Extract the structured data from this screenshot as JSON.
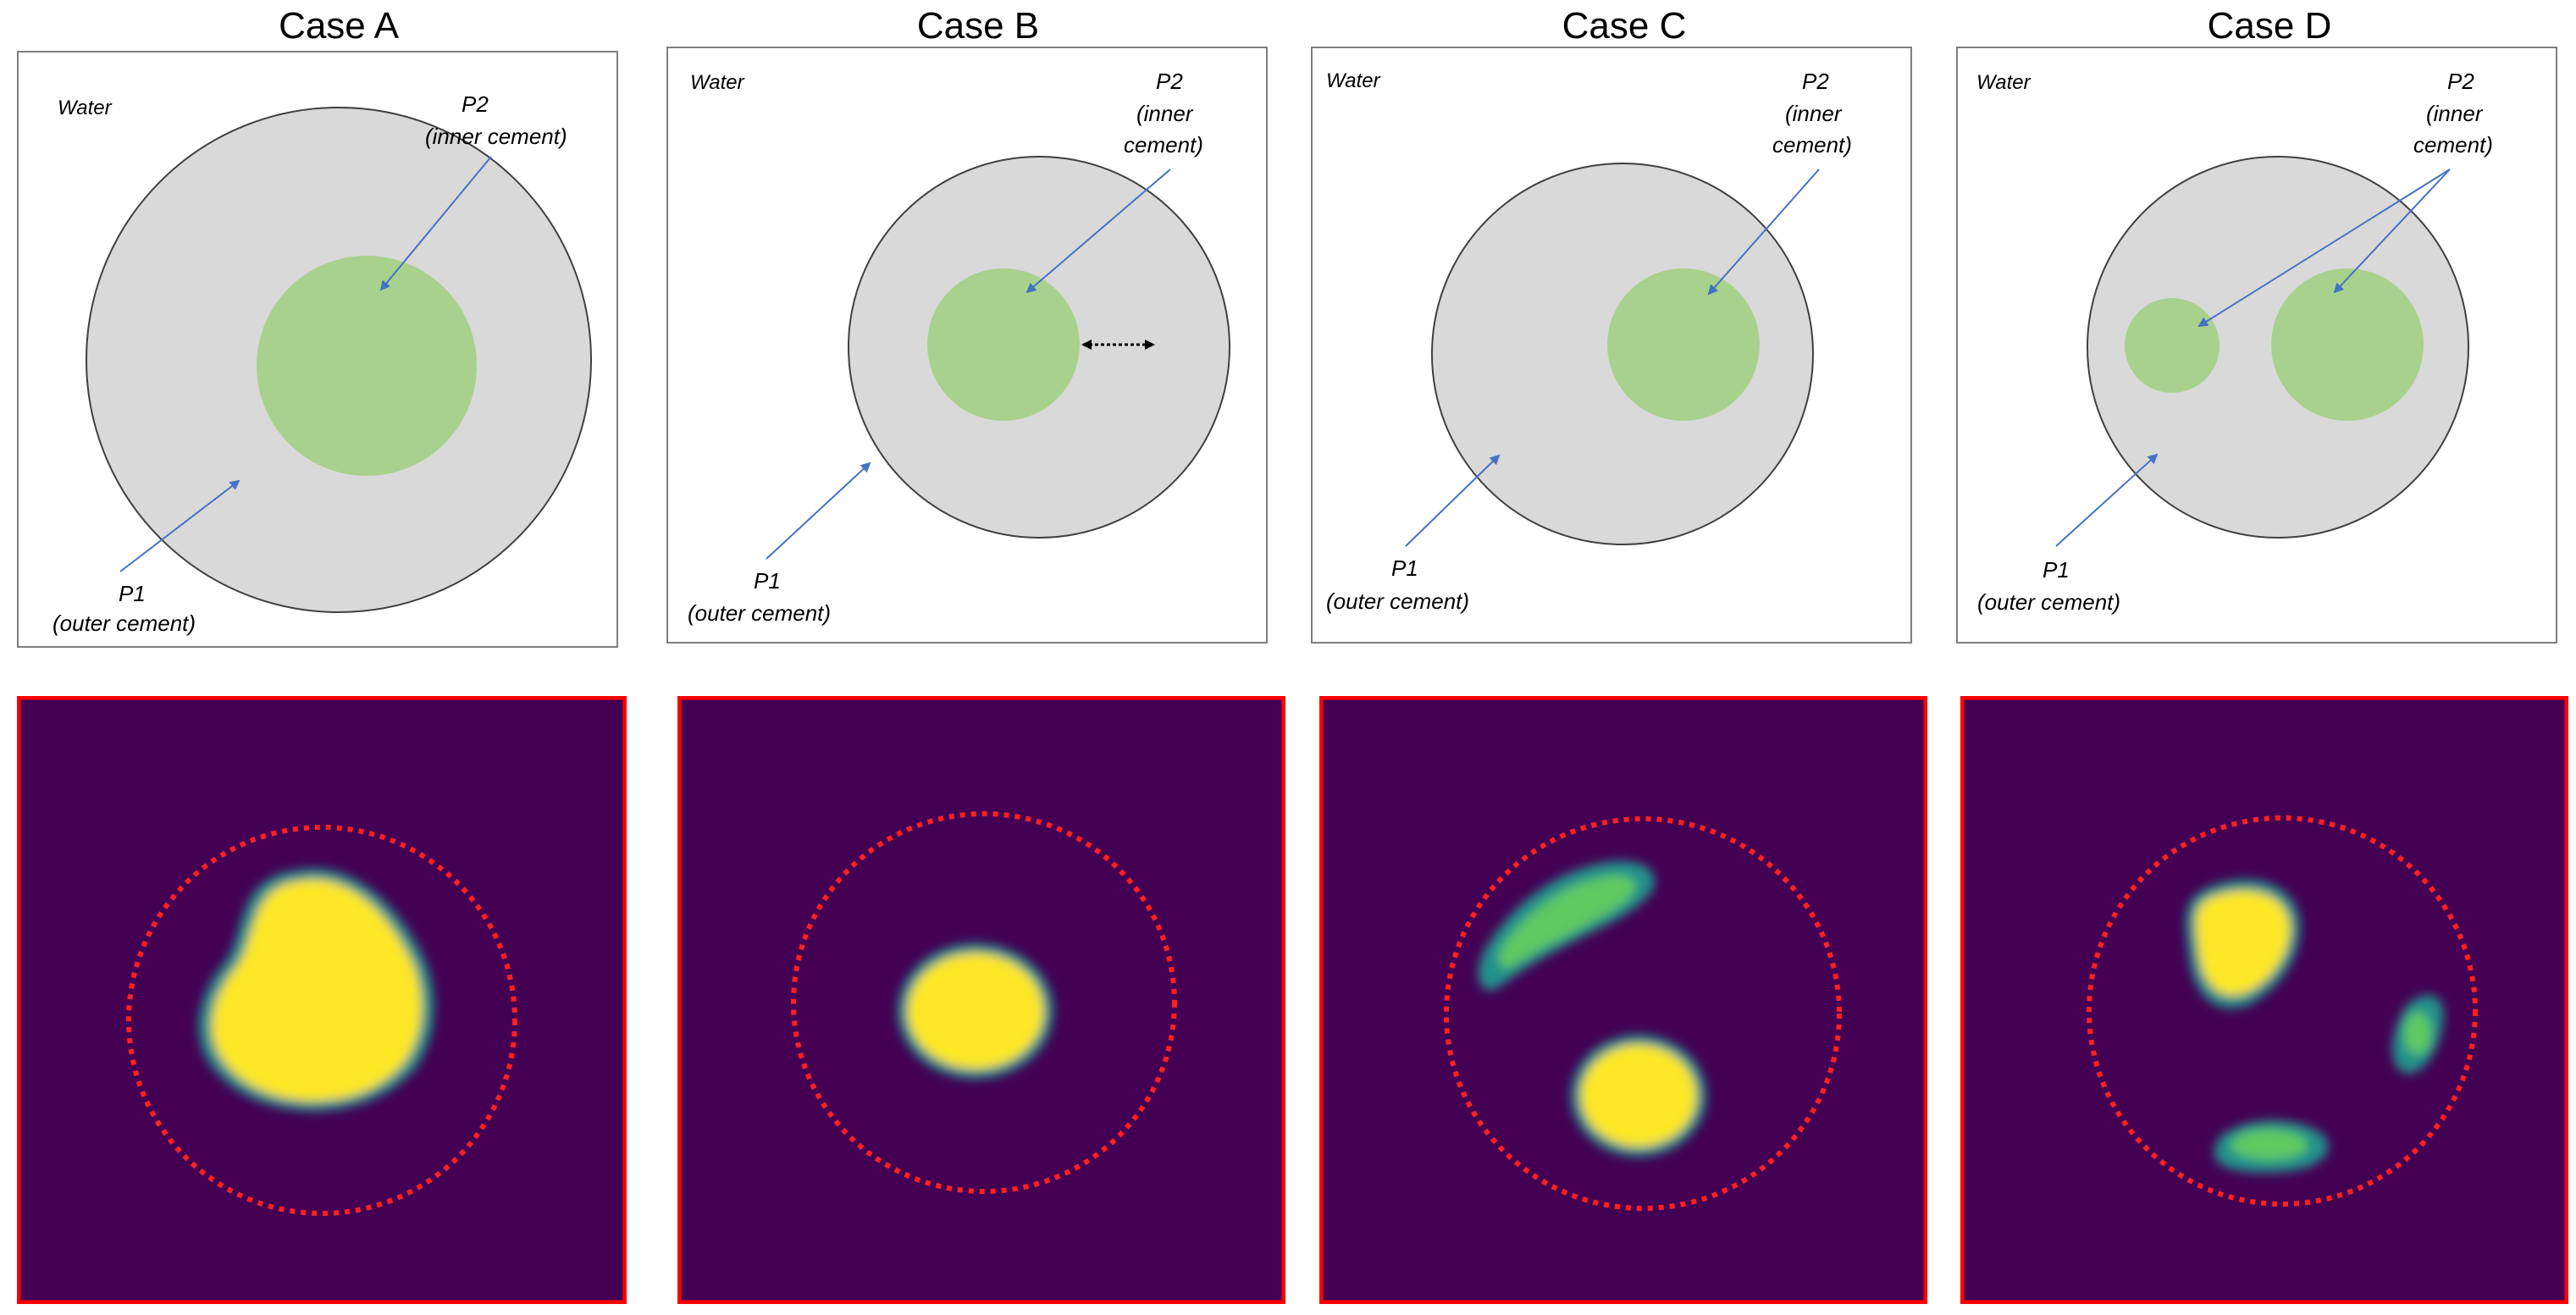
{
  "cases": [
    {
      "title": "Case A"
    },
    {
      "title": "Case B"
    },
    {
      "title": "Case C"
    },
    {
      "title": "Case D"
    }
  ],
  "labels": {
    "water": "Water",
    "p2_line1": "P2",
    "p2_inner_full": "(inner cement)",
    "p2_inner": "(inner",
    "p2_cement": "cement)",
    "p1_line1": "P1",
    "p1_line2": "(outer cement)"
  },
  "colors": {
    "outer_cement": "#d9d9d9",
    "inner_cement": "#a9d18e",
    "arrow": "#4472c4",
    "heatmap_bg": "#440154",
    "heatmap_high": "#fde725",
    "heatmap_mid": "#21918c",
    "frame_red": "#ff0000"
  }
}
